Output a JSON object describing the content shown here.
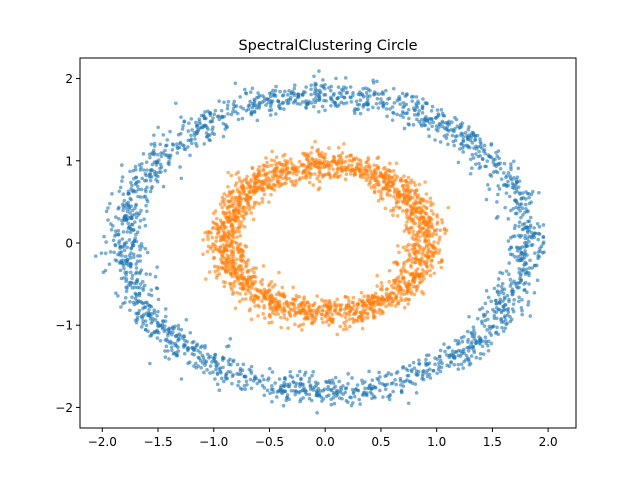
{
  "chart_data": {
    "type": "scatter",
    "title": "SpectralClustering Circle",
    "xlabel": "",
    "ylabel": "",
    "xlim": [
      -2.2,
      2.25
    ],
    "ylim": [
      -2.25,
      2.25
    ],
    "xticks": [
      -2.0,
      -1.5,
      -1.0,
      -0.5,
      0.0,
      0.5,
      1.0,
      1.5,
      2.0
    ],
    "xtick_labels": [
      "−2.0",
      "−1.5",
      "−1.0",
      "−0.5",
      "0.0",
      "0.5",
      "1.0",
      "1.5",
      "2.0"
    ],
    "yticks": [
      -2,
      -1,
      0,
      1,
      2
    ],
    "ytick_labels": [
      "−2",
      "−1",
      "0",
      "1",
      "2"
    ],
    "grid": false,
    "legend": "none",
    "clusters": [
      {
        "label": "outer ring",
        "color": "#1f77b4",
        "center": [
          0.0,
          0.0
        ],
        "radius_x": 1.8,
        "radius_y": 1.8,
        "noise": 0.09,
        "n_points": 2000
      },
      {
        "label": "inner ring",
        "color": "#ff7f0e",
        "center": [
          0.0,
          0.05
        ],
        "radius_x": 0.9,
        "radius_y": 0.9,
        "noise": 0.09,
        "n_points": 2000
      }
    ]
  }
}
